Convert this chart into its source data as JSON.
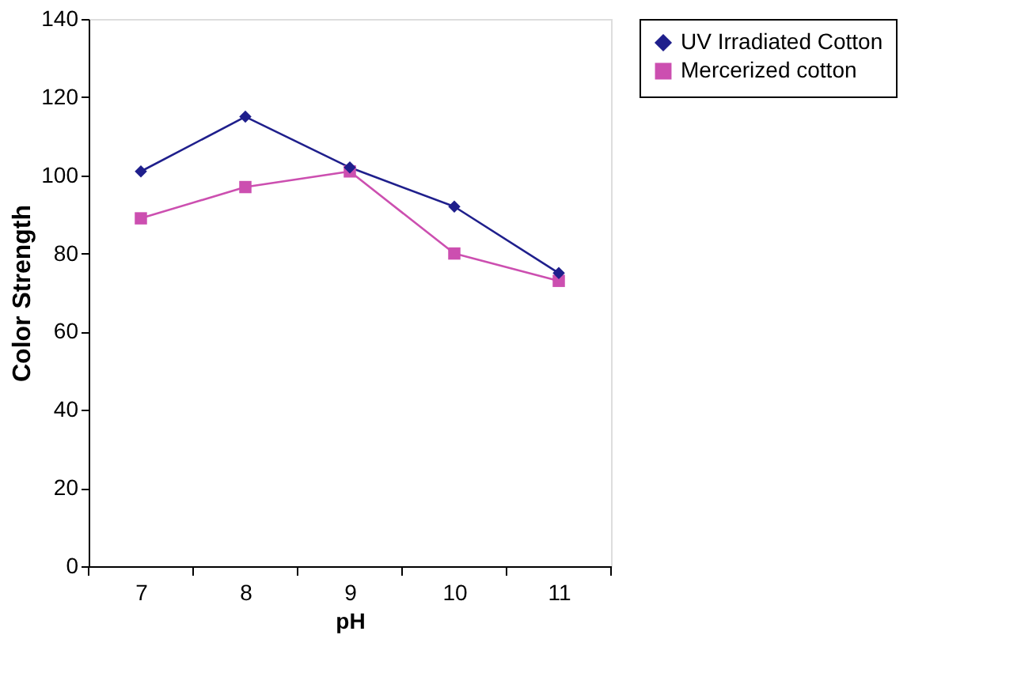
{
  "chart_data": {
    "type": "line",
    "xlabel": "pH",
    "ylabel": "Color Strength",
    "categories": [
      "7",
      "8",
      "9",
      "10",
      "11"
    ],
    "series": [
      {
        "name": "UV Irradiated Cotton",
        "color": "#1f1f8c",
        "marker": "diamond",
        "values": [
          101,
          115,
          102,
          92,
          75
        ]
      },
      {
        "name": "Mercerized cotton",
        "color": "#cc4fb0",
        "marker": "square",
        "values": [
          89,
          97,
          101,
          80,
          73
        ]
      }
    ],
    "ylim": [
      0,
      140
    ],
    "yticks": [
      0,
      20,
      40,
      60,
      80,
      100,
      120,
      140
    ],
    "grid": false,
    "legend": "right"
  }
}
